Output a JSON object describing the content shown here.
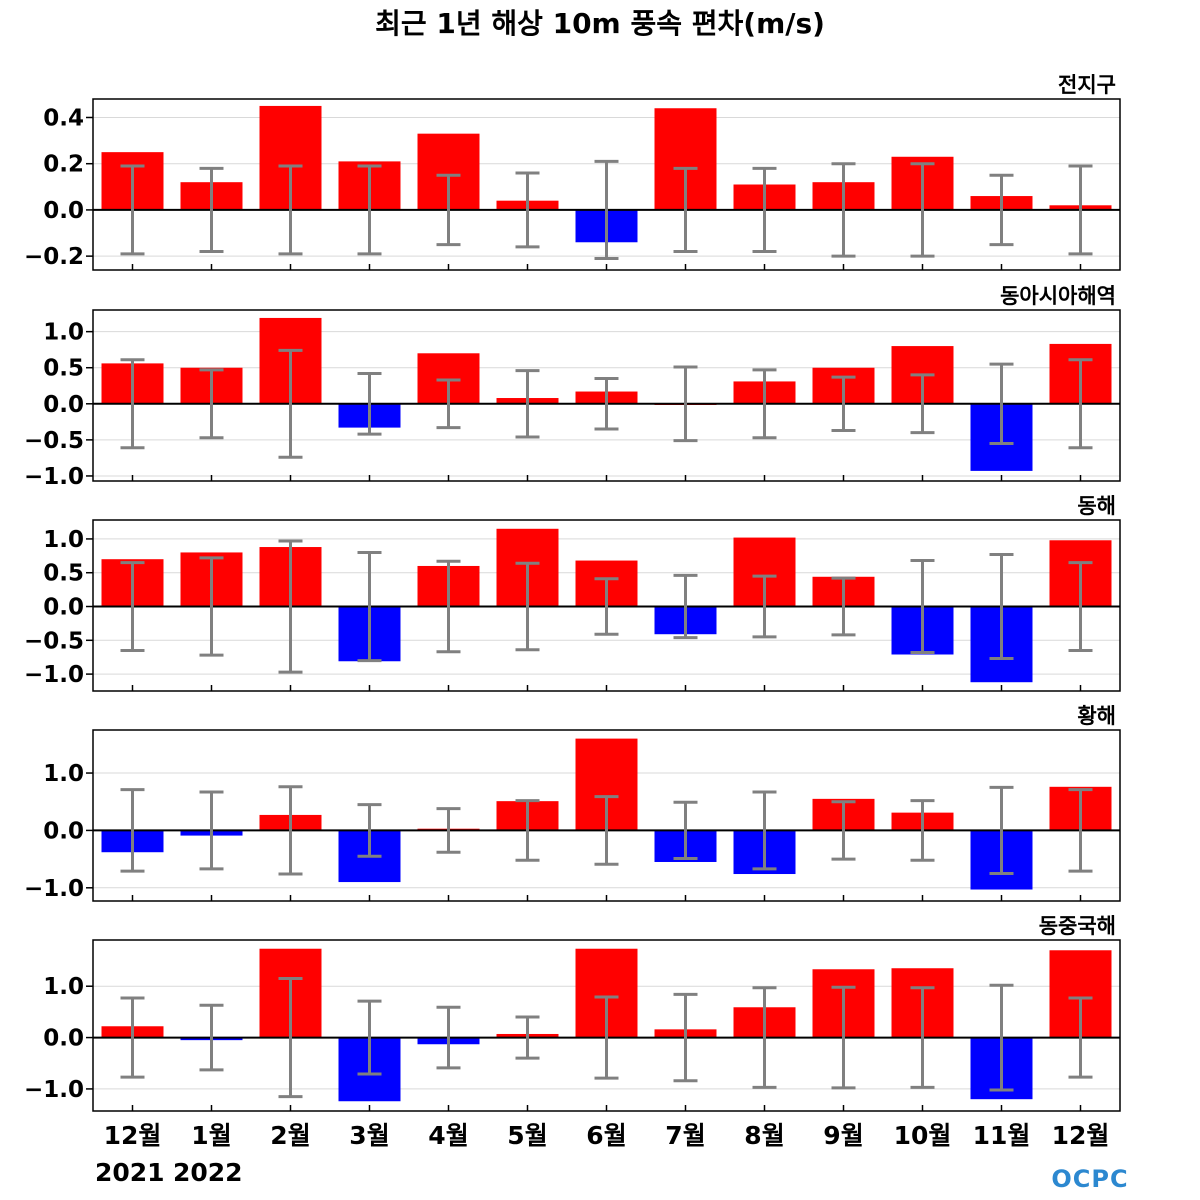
{
  "title": "최근 1년 해상 10m 풍속 편차(m/s)",
  "logo": "OCPC",
  "years": [
    "2021",
    "2022"
  ],
  "colors": {
    "positive": "#ff0000",
    "negative": "#0000ff",
    "errorbar": "#808080",
    "grid": "#d9d9d9",
    "zero": "#000000"
  },
  "chart_data": [
    {
      "type": "bar",
      "panel_title": "전지구",
      "categories": [
        "12월",
        "1월",
        "2월",
        "3월",
        "4월",
        "5월",
        "6월",
        "7월",
        "8월",
        "9월",
        "10월",
        "11월",
        "12월"
      ],
      "values": [
        0.25,
        0.12,
        0.45,
        0.21,
        0.33,
        0.04,
        -0.14,
        0.44,
        0.11,
        0.12,
        0.23,
        0.06,
        0.02
      ],
      "error": [
        0.19,
        0.18,
        0.19,
        0.19,
        0.15,
        0.16,
        0.21,
        0.18,
        0.18,
        0.2,
        0.2,
        0.15,
        0.19
      ],
      "ylim": [
        -0.26,
        0.48
      ],
      "yticks": [
        -0.2,
        0.0,
        0.2,
        0.4
      ],
      "ytick_labels": [
        "−0.2",
        "0.0",
        "0.2",
        "0.4"
      ]
    },
    {
      "type": "bar",
      "panel_title": "동아시아해역",
      "categories": [
        "12월",
        "1월",
        "2월",
        "3월",
        "4월",
        "5월",
        "6월",
        "7월",
        "8월",
        "9월",
        "10월",
        "11월",
        "12월"
      ],
      "values": [
        0.56,
        0.5,
        1.19,
        -0.33,
        0.7,
        0.08,
        0.17,
        0.0,
        0.31,
        0.5,
        0.8,
        -0.93,
        0.83
      ],
      "error": [
        0.61,
        0.47,
        0.74,
        0.42,
        0.33,
        0.46,
        0.35,
        0.51,
        0.47,
        0.37,
        0.4,
        0.55,
        0.61
      ],
      "ylim": [
        -1.07,
        1.3
      ],
      "yticks": [
        -1.0,
        -0.5,
        0.0,
        0.5,
        1.0
      ],
      "ytick_labels": [
        "−1.0",
        "−0.5",
        "0.0",
        "0.5",
        "1.0"
      ]
    },
    {
      "type": "bar",
      "panel_title": "동해",
      "categories": [
        "12월",
        "1월",
        "2월",
        "3월",
        "4월",
        "5월",
        "6월",
        "7월",
        "8월",
        "9월",
        "10월",
        "11월",
        "12월"
      ],
      "values": [
        0.7,
        0.8,
        0.88,
        -0.81,
        0.6,
        1.15,
        0.68,
        -0.41,
        1.02,
        0.44,
        -0.71,
        -1.12,
        0.98
      ],
      "error": [
        0.65,
        0.72,
        0.97,
        0.8,
        0.67,
        0.64,
        0.41,
        0.46,
        0.45,
        0.42,
        0.68,
        0.77,
        0.65
      ],
      "ylim": [
        -1.25,
        1.28
      ],
      "yticks": [
        -1.0,
        -0.5,
        0.0,
        0.5,
        1.0
      ],
      "ytick_labels": [
        "−1.0",
        "−0.5",
        "0.0",
        "0.5",
        "1.0"
      ]
    },
    {
      "type": "bar",
      "panel_title": "황해",
      "categories": [
        "12월",
        "1월",
        "2월",
        "3월",
        "4월",
        "5월",
        "6월",
        "7월",
        "8월",
        "9월",
        "10월",
        "11월",
        "12월"
      ],
      "values": [
        -0.38,
        -0.09,
        0.27,
        -0.9,
        0.03,
        0.51,
        1.6,
        -0.55,
        -0.76,
        0.55,
        0.31,
        -1.03,
        0.76
      ],
      "error": [
        0.71,
        0.67,
        0.76,
        0.45,
        0.38,
        0.52,
        0.59,
        0.49,
        0.67,
        0.5,
        0.52,
        0.75,
        0.71
      ],
      "ylim": [
        -1.23,
        1.75
      ],
      "yticks": [
        -1.0,
        0.0,
        1.0
      ],
      "ytick_labels": [
        "−1.0",
        "0.0",
        "1.0"
      ]
    },
    {
      "type": "bar",
      "panel_title": "동중국해",
      "categories": [
        "12월",
        "1월",
        "2월",
        "3월",
        "4월",
        "5월",
        "6월",
        "7월",
        "8월",
        "9월",
        "10월",
        "11월",
        "12월"
      ],
      "values": [
        0.22,
        -0.05,
        1.73,
        -1.24,
        -0.13,
        0.07,
        1.73,
        0.16,
        0.59,
        1.33,
        1.35,
        -1.2,
        1.7
      ],
      "error": [
        0.77,
        0.63,
        1.15,
        0.71,
        0.59,
        0.4,
        0.79,
        0.84,
        0.97,
        0.98,
        0.97,
        1.02,
        0.77
      ],
      "ylim": [
        -1.43,
        1.9
      ],
      "yticks": [
        -1.0,
        0.0,
        1.0
      ],
      "ytick_labels": [
        "−1.0",
        "0.0",
        "1.0"
      ]
    }
  ]
}
